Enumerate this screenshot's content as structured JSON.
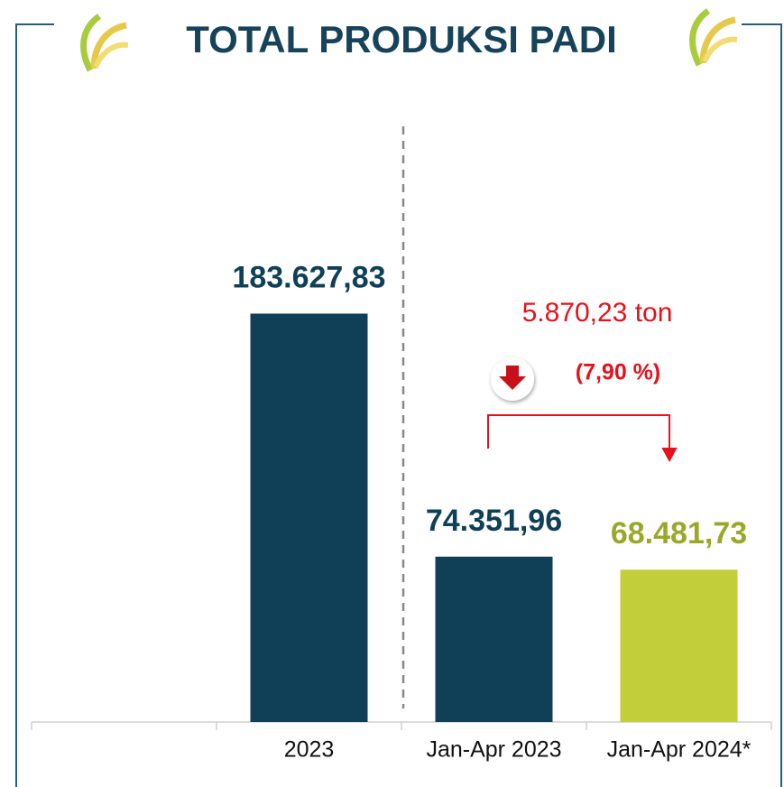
{
  "chart_data": {
    "type": "bar",
    "title": "TOTAL PRODUKSI PADI",
    "categories": [
      null,
      "2023",
      "Jan-Apr 2023",
      "Jan-Apr 2024*"
    ],
    "values": [
      null,
      183627.83,
      74351.96,
      68481.73
    ],
    "value_labels": [
      null,
      "183.627,83",
      "74.351,96",
      "68.481,73"
    ],
    "colors": [
      null,
      "#0f4058",
      "#0f4058",
      "#c2cf3b"
    ],
    "value_label_colors": [
      null,
      "#0f4058",
      "#0f4058",
      "#9aa82a"
    ],
    "ylim": [
      0,
      280000
    ],
    "annotations": [
      "5.870,23 ton",
      "(7,90 %)"
    ]
  }
}
